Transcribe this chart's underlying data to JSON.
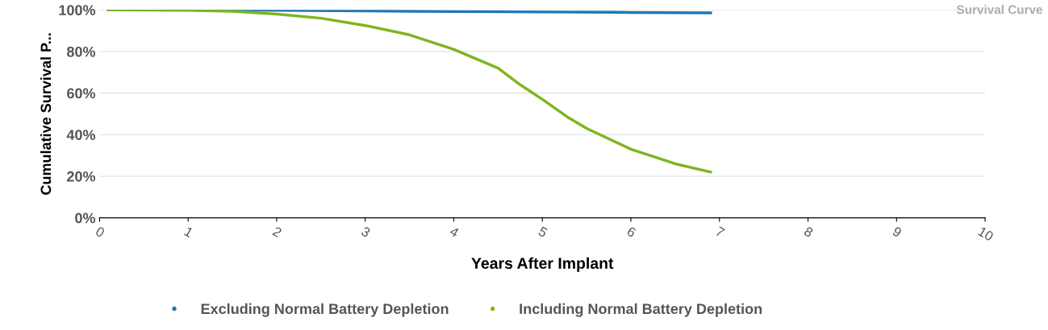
{
  "chart_data": {
    "type": "line",
    "title": "Survival Curve",
    "xlabel": "Years After Implant",
    "ylabel": "Cumulative Survival P...",
    "series": [
      {
        "name": "Excluding Normal Battery Depletion",
        "color": "#1f77b4",
        "x": [
          0.1,
          1,
          2,
          3,
          4,
          5,
          6,
          6.9
        ],
        "values": [
          100,
          100,
          99.8,
          99.5,
          99.2,
          99,
          98.8,
          98.6
        ]
      },
      {
        "name": "Including Normal Battery Depletion",
        "color": "#7fb51e",
        "x": [
          0.1,
          1,
          1.5,
          2,
          2.5,
          3,
          3.5,
          4,
          4.5,
          4.75,
          5,
          5.3,
          5.5,
          6,
          6.5,
          6.9
        ],
        "values": [
          100,
          99.8,
          99.3,
          98,
          96,
          92.5,
          88,
          81,
          72,
          64,
          57,
          48,
          43,
          33,
          26,
          22
        ]
      }
    ],
    "xlim": [
      0,
      10
    ],
    "xticks": [
      0,
      1,
      2,
      3,
      4,
      5,
      6,
      7,
      8,
      9,
      10
    ],
    "ylim": [
      0,
      100
    ],
    "yticks": [
      {
        "value": 0,
        "label": "0%"
      },
      {
        "value": 20,
        "label": "20%"
      },
      {
        "value": 40,
        "label": "40%"
      },
      {
        "value": 60,
        "label": "60%"
      },
      {
        "value": 80,
        "label": "80%"
      },
      {
        "value": 100,
        "label": "100%"
      }
    ],
    "grid": "y",
    "legend": "bottom",
    "marker": "none",
    "line_style": "solid"
  }
}
